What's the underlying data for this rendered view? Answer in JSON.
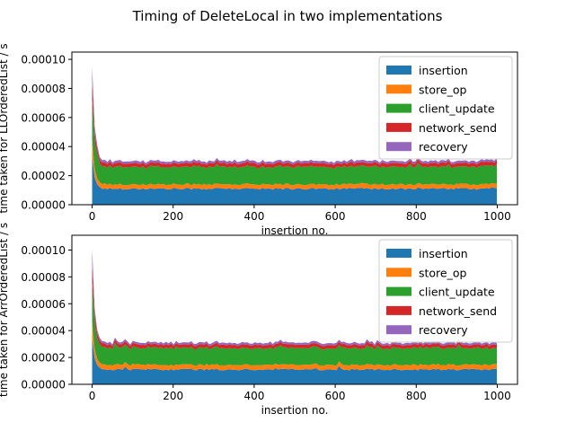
{
  "figure": {
    "title": "Timing of DeleteLocal in two implementations"
  },
  "colors": {
    "insertion": "#1f77b4",
    "store_op": "#ff7f0e",
    "client_update": "#2ca02c",
    "network_send": "#d62728",
    "recovery": "#9467bd",
    "axis": "#000000",
    "legend_border": "#cccccc"
  },
  "chart_data": [
    {
      "type": "area",
      "stacked": true,
      "title": "",
      "xlabel": "insertion no.",
      "ylabel": "time taken for LLOrderedList / s",
      "xlim": [
        -50,
        1050
      ],
      "ylim": [
        0,
        0.000105
      ],
      "xticks": [
        0,
        200,
        400,
        600,
        800,
        1000
      ],
      "yticks": [
        "0.00000",
        "0.00002",
        "0.00004",
        "0.00006",
        "0.00008",
        "0.00010"
      ],
      "legend_position": "top-right",
      "grid": false,
      "x_range": [
        0,
        999
      ],
      "series": [
        {
          "name": "insertion",
          "steady": 1.1e-05,
          "peak": 3.3e-05
        },
        {
          "name": "store_op",
          "steady": 3e-06,
          "peak": 1.2e-05
        },
        {
          "name": "client_update",
          "steady": 1.2e-05,
          "peak": 2.8e-05
        },
        {
          "name": "network_send",
          "steady": 2.5e-06,
          "peak": 1.2e-05
        },
        {
          "name": "recovery",
          "steady": 1.5e-06,
          "peak": 1.1e-05
        }
      ]
    },
    {
      "type": "area",
      "stacked": true,
      "title": "",
      "xlabel": "insertion no.",
      "ylabel": "time taken for ArrOrderedList / s",
      "xlim": [
        -50,
        1050
      ],
      "ylim": [
        0,
        0.000111
      ],
      "xticks": [
        0,
        200,
        400,
        600,
        800,
        1000
      ],
      "yticks": [
        "0.00000",
        "0.00002",
        "0.00004",
        "0.00006",
        "0.00008",
        "0.00010"
      ],
      "legend_position": "top-right",
      "grid": false,
      "x_range": [
        0,
        999
      ],
      "series": [
        {
          "name": "insertion",
          "steady": 1.1e-05,
          "peak": 3.4e-05
        },
        {
          "name": "store_op",
          "steady": 3.5e-06,
          "peak": 1.3e-05
        },
        {
          "name": "client_update",
          "steady": 1.25e-05,
          "peak": 2.9e-05
        },
        {
          "name": "network_send",
          "steady": 2.5e-06,
          "peak": 1.3e-05
        },
        {
          "name": "recovery",
          "steady": 1.5e-06,
          "peak": 1.2e-05
        }
      ]
    }
  ]
}
